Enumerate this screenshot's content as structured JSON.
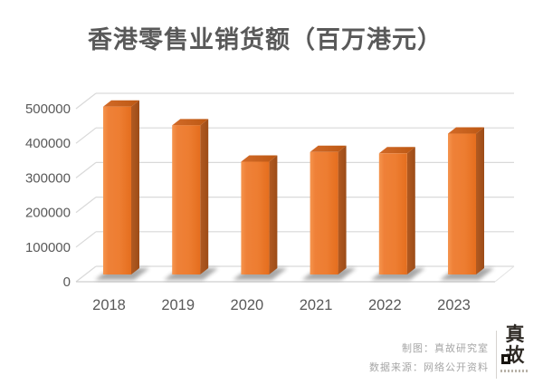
{
  "chart_data": {
    "type": "bar",
    "style": "3d-column",
    "title": "香港零售业销货额（百万港元）",
    "categories": [
      "2018",
      "2019",
      "2020",
      "2021",
      "2022",
      "2023"
    ],
    "values": [
      485000,
      431000,
      326000,
      354000,
      350000,
      407000
    ],
    "xlabel": "",
    "ylabel": "",
    "ylim": [
      0,
      500000
    ],
    "ytick_interval": 100000,
    "ytick_labels": [
      "0",
      "100000",
      "200000",
      "300000",
      "400000",
      "500000"
    ],
    "grid": true,
    "legend": "none",
    "colors": {
      "bar_front": "#ED7D31",
      "bar_front_light": "#F5954F",
      "bar_front_dark": "#E56E1E",
      "bar_top": "#D26A28",
      "bar_top_dark": "#BC5813",
      "bar_side": "#B25A21",
      "bar_side_dark": "#9C4C18",
      "gridline": "#D9D9D9",
      "floor_edge": "#CFCFCF",
      "axis_text": "#595959",
      "shadow": "#3F3F3F"
    }
  },
  "footer": {
    "credit_line": "制图：真故研究室",
    "source_line": "数据来源：网络公开资料",
    "logo": {
      "char1": "真",
      "char2": "故"
    }
  }
}
